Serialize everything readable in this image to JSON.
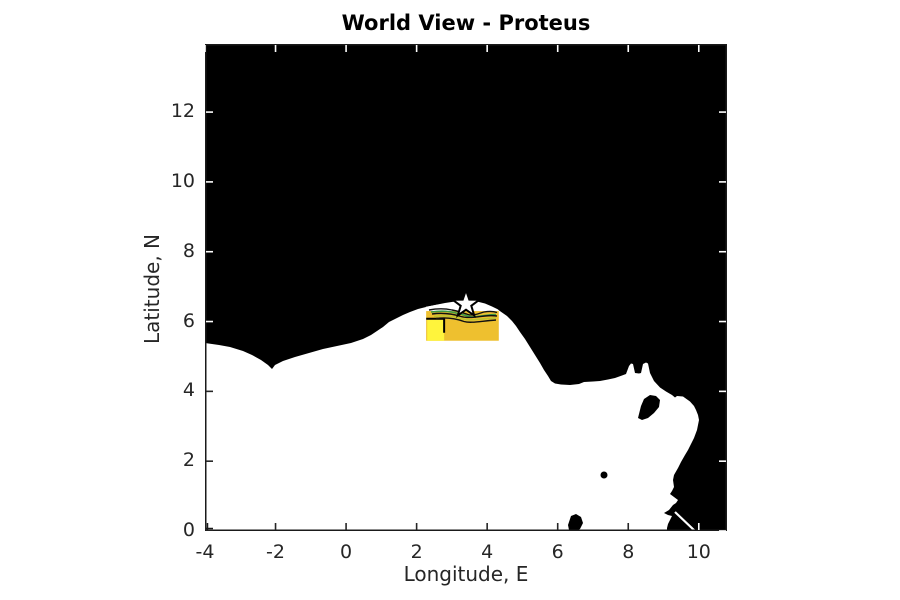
{
  "chart_data": {
    "type": "map",
    "title": "World View - Proteus",
    "xlabel": "Longitude, E",
    "ylabel": "Latitude, N",
    "xlim": [
      -4,
      10.8
    ],
    "ylim": [
      0,
      13.95
    ],
    "x_ticks": [
      -4,
      -2,
      0,
      2,
      4,
      6,
      8,
      10
    ],
    "y_ticks": [
      0,
      2,
      4,
      6,
      8,
      10,
      12
    ],
    "grid": false,
    "legend": "none",
    "land_color": "#000000",
    "sea_color": "#ffffff",
    "text_color": "#262626",
    "star_marker": {
      "lon": 3.4,
      "lat": 6.5,
      "fill": "#ffffff",
      "outline": "#000000"
    },
    "survey_region": {
      "lon_min": 2.27,
      "lon_max": 4.33,
      "lat_min": 5.45,
      "lat_max": 6.3,
      "fill": "#eec02f"
    },
    "sub_region": {
      "lon_min": 2.3,
      "lon_max": 2.78,
      "lat_min": 5.45,
      "lat_max": 6.05,
      "fill": "#fff43c",
      "border": "#000000"
    },
    "contour_band_colors": [
      "#111111",
      "#3f9b45",
      "#b9c332"
    ],
    "annotations": [
      "black land mass covering upper map and eastern coastline",
      "white sea in lower portion",
      "gold survey rectangle on coast near lon 2.3-4.3, lat 5.45-6.3",
      "bright yellow sub-square with black corner border at its left end",
      "thin contour bands along the coast above the gold region",
      "white star marker on the coastline at approx (3.4, 6.5)",
      "islands: Bioko ~ (8.5,3.5), Principe ~ (7.3,1.6), Sao Tome ~ (6.5,0.2)"
    ]
  }
}
